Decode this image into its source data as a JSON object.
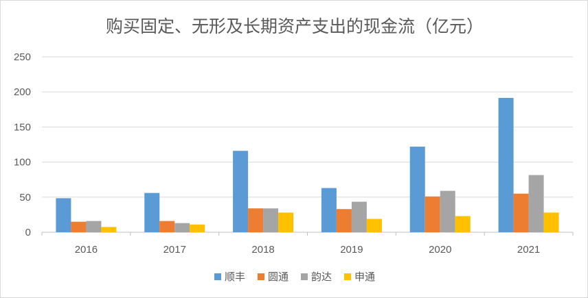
{
  "chart_data": {
    "type": "bar",
    "title": "购买固定、无形及长期资产支出的现金流（亿元）",
    "categories": [
      "2016",
      "2017",
      "2018",
      "2019",
      "2020",
      "2021"
    ],
    "series": [
      {
        "name": "顺丰",
        "color": "#5B9BD5",
        "values": [
          48.5,
          56,
          116,
          63,
          122,
          191.5
        ]
      },
      {
        "name": "圆通",
        "color": "#ED7D31",
        "values": [
          15,
          16,
          34,
          33,
          51,
          55
        ]
      },
      {
        "name": "韵达",
        "color": "#A5A5A5",
        "values": [
          16,
          13,
          34,
          43.5,
          59,
          81.5
        ]
      },
      {
        "name": "申通",
        "color": "#FFC000",
        "values": [
          7.5,
          11,
          28,
          19,
          23,
          28
        ]
      }
    ],
    "ylim": [
      0,
      250
    ],
    "yticks": [
      0,
      50,
      100,
      150,
      200,
      250
    ],
    "grid": true,
    "legend_position": "bottom"
  }
}
